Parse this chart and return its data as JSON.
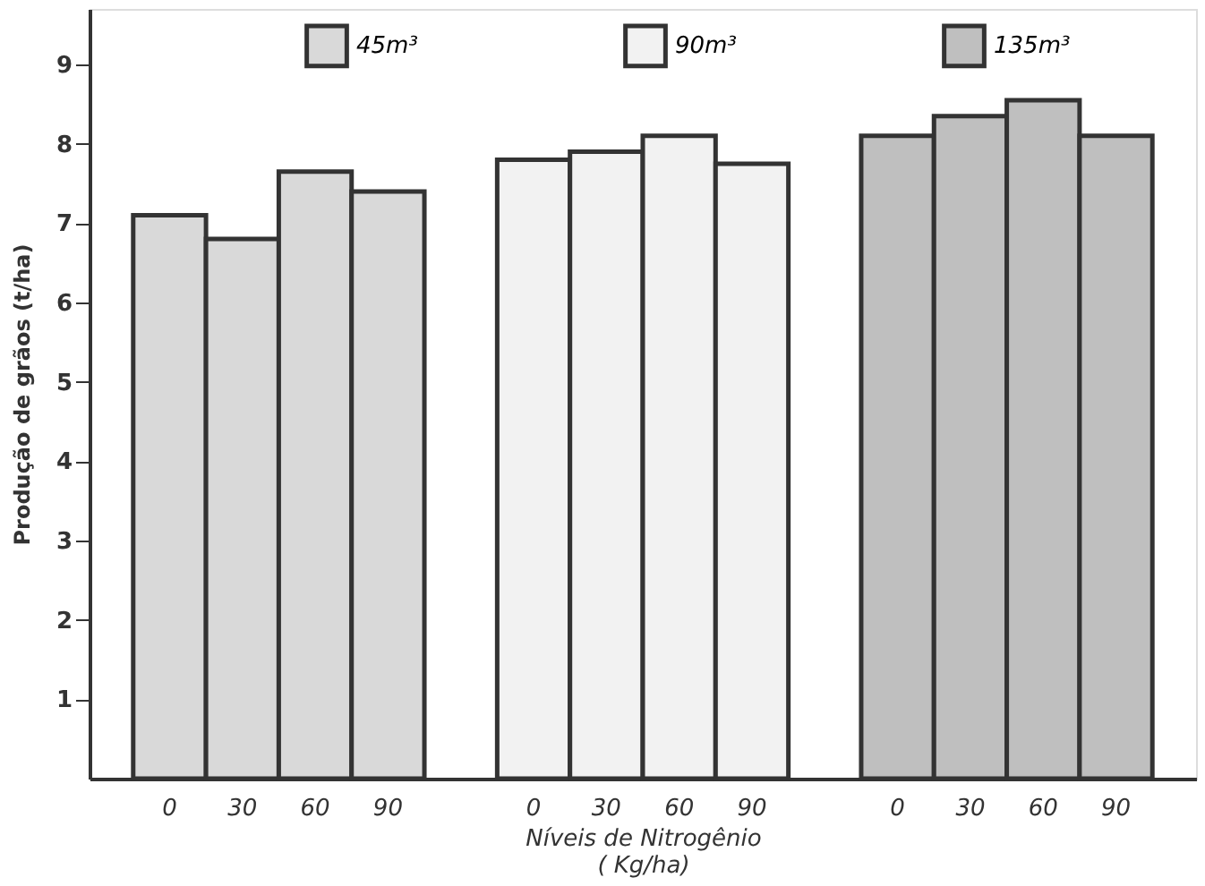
{
  "chart_data": {
    "type": "bar",
    "ylabel": "Produção de grãos   (t/ha)",
    "xlabel": "Níveis de Nitrogênio\n( Kg/ha)",
    "categories": [
      "0",
      "30",
      "60",
      "90",
      "0",
      "30",
      "60",
      "90",
      "0",
      "30",
      "60",
      "90"
    ],
    "series": [
      {
        "name": "45m³",
        "color": "#d9d9d9",
        "values": [
          7.1,
          6.8,
          7.65,
          7.4,
          null,
          null,
          null,
          null,
          null,
          null,
          null,
          null
        ]
      },
      {
        "name": "90m³",
        "color": "#f2f2f2",
        "values": [
          null,
          null,
          null,
          null,
          7.8,
          7.9,
          8.1,
          7.75,
          null,
          null,
          null,
          null
        ]
      },
      {
        "name": "135m³",
        "color": "#bfbfbf",
        "values": [
          null,
          null,
          null,
          null,
          null,
          null,
          null,
          null,
          8.1,
          8.35,
          8.55,
          8.1
        ]
      }
    ],
    "ylim": [
      0,
      9.7
    ],
    "yticks": [
      1,
      2,
      3,
      4,
      5,
      6,
      7,
      8,
      9
    ],
    "grid": false,
    "legend": "top"
  }
}
